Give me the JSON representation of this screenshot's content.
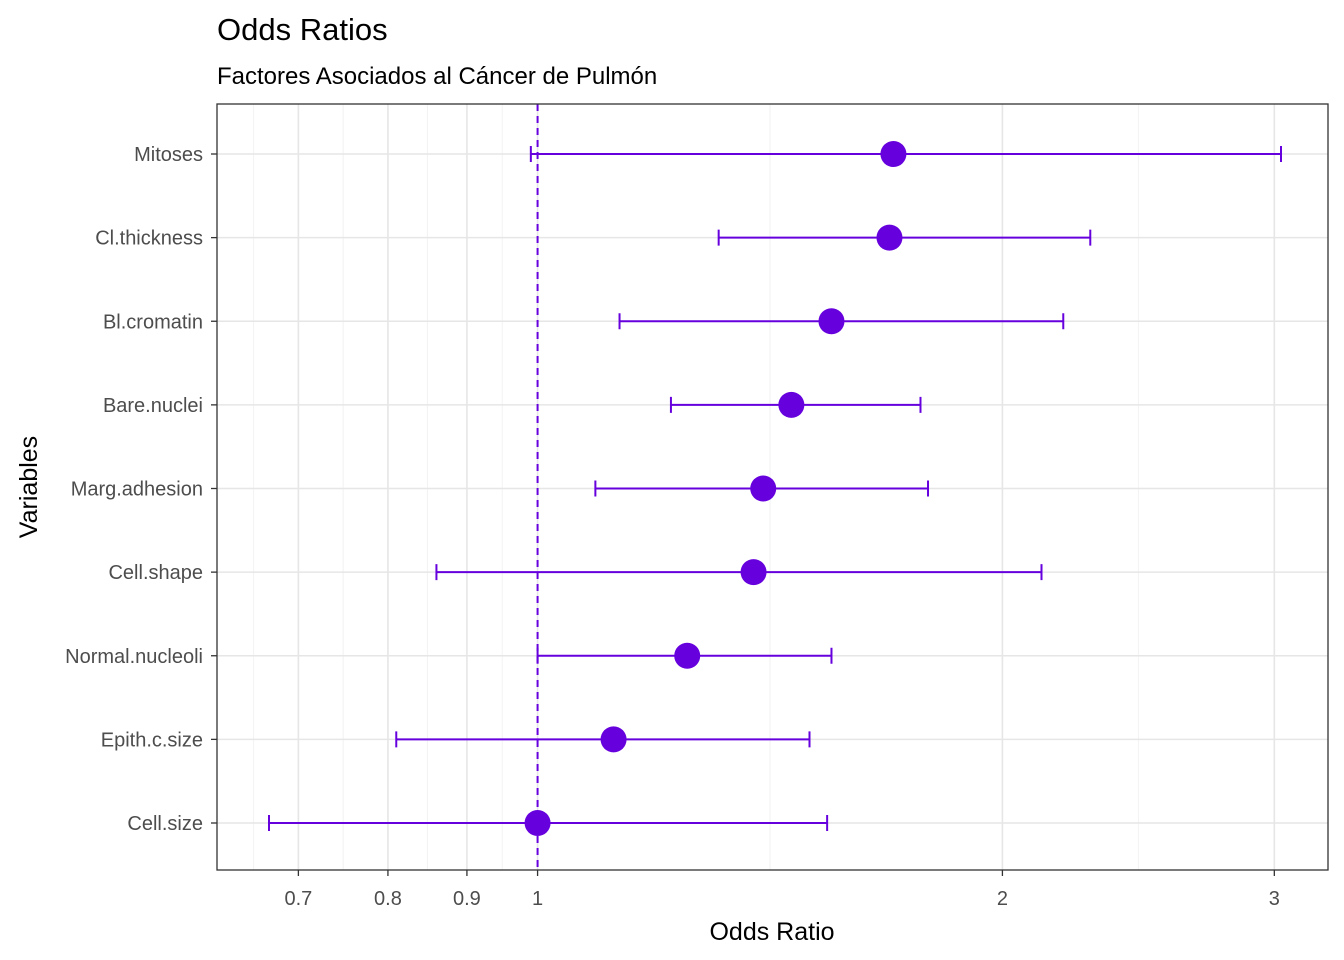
{
  "chart_data": {
    "type": "scatter",
    "title": "Odds Ratios",
    "subtitle": "Factores Asociados al Cáncer de Pulmón",
    "xlabel": "Odds Ratio",
    "ylabel": "Variables",
    "x_scale": "log",
    "xlim": [
      0.62,
      3.25
    ],
    "x_ticks": [
      0.7,
      0.8,
      0.9,
      1,
      2,
      3
    ],
    "x_tick_labels": [
      "0.7",
      "0.8",
      "0.9",
      "1",
      "2",
      "3"
    ],
    "reference_line": {
      "x": 1,
      "style": "dashed"
    },
    "grid": true,
    "color": "#6600dd",
    "categories": [
      "Mitoses",
      "Cl.thickness",
      "Bl.cromatin",
      "Bare.nuclei",
      "Marg.adhesion",
      "Cell.shape",
      "Normal.nucleoli",
      "Epith.c.size",
      "Cell.size"
    ],
    "estimates": [
      1.7,
      1.69,
      1.55,
      1.46,
      1.4,
      1.38,
      1.25,
      1.12,
      1.0
    ],
    "ci_lower": [
      0.99,
      1.31,
      1.13,
      1.22,
      1.09,
      0.86,
      1.0,
      0.81,
      0.67
    ],
    "ci_upper": [
      3.03,
      2.28,
      2.19,
      1.77,
      1.79,
      2.12,
      1.55,
      1.5,
      1.54
    ]
  }
}
